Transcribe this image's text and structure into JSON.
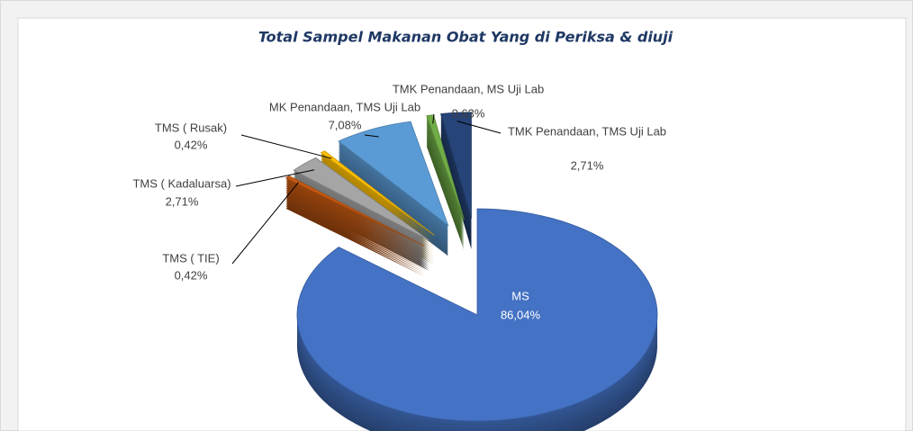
{
  "chart_data": {
    "type": "pie3d",
    "title": "Total Sampel Makanan Obat Yang di Periksa & diuji",
    "categories": [
      "MS",
      "TMS ( TIE)",
      "TMS ( Kadaluarsa)",
      "TMS ( Rusak)",
      "MK Penandaan, TMS Uji Lab",
      "TMK Penandaan, MS Uji Lab",
      "TMK Penandaan, TMS Uji Lab"
    ],
    "values": [
      86.04,
      0.42,
      2.71,
      0.42,
      7.08,
      0.63,
      2.71
    ],
    "value_labels": [
      "86,04%",
      "0,42%",
      "2,71%",
      "0,42%",
      "7,08%",
      "0,63%",
      "2,71%"
    ],
    "colors": [
      "#4472c4",
      "#c65911",
      "#a5a5a5",
      "#ffc000",
      "#5b9bd5",
      "#70ad47",
      "#264478"
    ]
  }
}
